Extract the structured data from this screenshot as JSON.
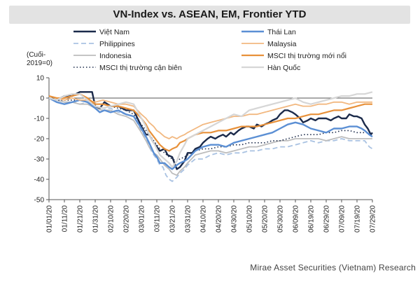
{
  "chart_data": {
    "type": "line",
    "title": "VN-Index vs. ASEAN, EM, Frontier YTD",
    "ylabel": "(Cuối-2019=0)",
    "ylabel_lines": [
      "(Cuối-",
      "2019=0)"
    ],
    "ylim": [
      -50,
      10
    ],
    "yticks": [
      10,
      0,
      -10,
      -20,
      -30,
      -40,
      -50
    ],
    "xlim": [
      0,
      210
    ],
    "x_tick_labels": [
      "01/01/20",
      "01/11/20",
      "01/21/20",
      "01/31/20",
      "02/10/20",
      "02/20/20",
      "03/01/20",
      "03/11/20",
      "03/21/20",
      "03/31/20",
      "04/10/20",
      "04/20/20",
      "04/30/20",
      "05/10/20",
      "05/20/20",
      "05/30/20",
      "06/09/20",
      "06/19/20",
      "06/29/20",
      "07/09/20",
      "07/19/20",
      "07/29/20"
    ],
    "x_tick_days": [
      0,
      10,
      20,
      30,
      40,
      50,
      60,
      70,
      80,
      90,
      100,
      110,
      120,
      130,
      140,
      150,
      160,
      170,
      180,
      190,
      200,
      210
    ],
    "series": [
      {
        "name": "Việt Nam",
        "color": "#1b2a4a",
        "width": 2.4,
        "dash": "",
        "x": [
          0,
          5,
          10,
          15,
          20,
          25,
          28,
          30,
          33,
          36,
          40,
          45,
          50,
          55,
          60,
          63,
          65,
          68,
          70,
          72,
          75,
          77,
          80,
          83,
          85,
          88,
          90,
          93,
          95,
          98,
          100,
          103,
          105,
          108,
          110,
          113,
          115,
          118,
          120,
          123,
          125,
          128,
          130,
          133,
          135,
          138,
          140,
          143,
          145,
          148,
          150,
          153,
          155,
          158,
          160,
          163,
          165,
          168,
          170,
          173,
          175,
          178,
          180,
          183,
          185,
          188,
          190,
          193,
          195,
          198,
          200,
          203,
          205,
          207,
          209,
          210
        ],
        "y": [
          0,
          -1,
          1,
          1,
          3,
          3,
          3,
          -4,
          -5,
          -2,
          -4,
          -4,
          -6,
          -6,
          -14,
          -18,
          -18,
          -22,
          -24,
          -26,
          -25,
          -28,
          -29,
          -35,
          -34,
          -31,
          -27,
          -27,
          -25,
          -24,
          -22,
          -20,
          -19,
          -20,
          -19,
          -18,
          -19,
          -17,
          -18,
          -16,
          -15,
          -14,
          -14,
          -15,
          -13,
          -14,
          -13,
          -12,
          -11,
          -10,
          -8,
          -6,
          -6,
          -7,
          -8,
          -10,
          -12,
          -11,
          -10,
          -11,
          -10,
          -10,
          -10,
          -11,
          -10,
          -9,
          -10,
          -10,
          -8,
          -9,
          -9,
          -10,
          -13,
          -15,
          -18,
          -17
        ]
      },
      {
        "name": "Philippines",
        "color": "#a9c2e2",
        "width": 1.8,
        "dash": "7,4",
        "x": [
          0,
          5,
          10,
          15,
          20,
          25,
          30,
          35,
          40,
          45,
          50,
          55,
          60,
          63,
          65,
          68,
          70,
          72,
          74,
          76,
          78,
          80,
          83,
          85,
          88,
          90,
          95,
          100,
          105,
          110,
          115,
          120,
          125,
          130,
          135,
          140,
          145,
          150,
          155,
          160,
          165,
          170,
          175,
          180,
          185,
          190,
          195,
          200,
          205,
          208,
          210
        ],
        "y": [
          0,
          -1,
          -2,
          -2,
          -3,
          -2,
          -4,
          -5,
          -5,
          -7,
          -8,
          -9,
          -16,
          -20,
          -24,
          -28,
          -30,
          -33,
          -34,
          -38,
          -40,
          -41,
          -39,
          -37,
          -35,
          -33,
          -30,
          -30,
          -28,
          -27,
          -28,
          -27,
          -27,
          -26,
          -26,
          -25,
          -25,
          -24,
          -24,
          -23,
          -22,
          -21,
          -22,
          -21,
          -21,
          -20,
          -21,
          -21,
          -21,
          -24,
          -25
        ]
      },
      {
        "name": "Indonesia",
        "color": "#bdbdbd",
        "width": 1.8,
        "dash": "",
        "x": [
          0,
          5,
          10,
          15,
          20,
          25,
          30,
          35,
          40,
          45,
          50,
          55,
          60,
          63,
          65,
          68,
          70,
          72,
          75,
          78,
          80,
          83,
          85,
          88,
          90,
          95,
          100,
          105,
          110,
          115,
          120,
          125,
          130,
          135,
          140,
          145,
          150,
          155,
          160,
          165,
          170,
          175,
          180,
          185,
          190,
          195,
          200,
          205,
          210
        ],
        "y": [
          0,
          -1,
          -2,
          -2,
          -3,
          -3,
          -5,
          -6,
          -6,
          -8,
          -9,
          -11,
          -17,
          -21,
          -24,
          -27,
          -28,
          -30,
          -33,
          -35,
          -37,
          -38,
          -36,
          -34,
          -32,
          -28,
          -27,
          -26,
          -26,
          -27,
          -26,
          -25,
          -24,
          -24,
          -23,
          -22,
          -21,
          -21,
          -20,
          -20,
          -20,
          -20,
          -21,
          -20,
          -19,
          -20,
          -20,
          -20,
          -20
        ]
      },
      {
        "name": "MSCI thị trường cận biên",
        "color": "#1b2a4a",
        "width": 1.6,
        "dash": "1.5,3",
        "x": [
          0,
          5,
          10,
          15,
          20,
          25,
          30,
          35,
          40,
          45,
          50,
          55,
          60,
          63,
          65,
          68,
          70,
          72,
          75,
          78,
          80,
          83,
          85,
          88,
          90,
          95,
          100,
          105,
          110,
          115,
          120,
          125,
          130,
          135,
          140,
          145,
          150,
          155,
          160,
          165,
          170,
          175,
          180,
          185,
          190,
          195,
          200,
          205,
          210
        ],
        "y": [
          0,
          -1,
          -1,
          -1,
          -1,
          -2,
          -3,
          -3,
          -4,
          -5,
          -6,
          -8,
          -13,
          -16,
          -18,
          -21,
          -23,
          -25,
          -27,
          -29,
          -30,
          -31,
          -30,
          -29,
          -28,
          -26,
          -25,
          -25,
          -24,
          -24,
          -23,
          -23,
          -22,
          -22,
          -22,
          -21,
          -21,
          -20,
          -19,
          -18,
          -18,
          -18,
          -17,
          -17,
          -16,
          -16,
          -17,
          -17,
          -17
        ]
      },
      {
        "name": "Thái Lan",
        "color": "#5b8fd4",
        "width": 2.4,
        "dash": "",
        "x": [
          0,
          5,
          10,
          15,
          20,
          25,
          30,
          33,
          36,
          40,
          45,
          50,
          55,
          60,
          63,
          65,
          68,
          70,
          72,
          75,
          78,
          80,
          83,
          85,
          88,
          90,
          95,
          100,
          105,
          110,
          115,
          120,
          125,
          130,
          135,
          140,
          145,
          150,
          155,
          160,
          165,
          170,
          175,
          180,
          185,
          190,
          195,
          200,
          203,
          205,
          208,
          210
        ],
        "y": [
          0,
          -2,
          -3,
          -2,
          -1,
          -2,
          -5,
          -7,
          -6,
          -7,
          -6,
          -8,
          -9,
          -15,
          -19,
          -22,
          -27,
          -29,
          -32,
          -32,
          -34,
          -35,
          -33,
          -32,
          -31,
          -30,
          -26,
          -24,
          -23,
          -23,
          -24,
          -22,
          -21,
          -20,
          -19,
          -18,
          -17,
          -15,
          -13,
          -12,
          -13,
          -15,
          -16,
          -17,
          -15,
          -15,
          -14,
          -14,
          -15,
          -16,
          -18,
          -19
        ]
      },
      {
        "name": "Malaysia",
        "color": "#f2b880",
        "width": 1.8,
        "dash": "",
        "x": [
          0,
          5,
          10,
          15,
          20,
          25,
          30,
          35,
          40,
          45,
          50,
          55,
          60,
          63,
          65,
          68,
          70,
          72,
          75,
          78,
          80,
          83,
          85,
          88,
          90,
          95,
          100,
          105,
          110,
          115,
          120,
          125,
          130,
          135,
          140,
          145,
          150,
          155,
          160,
          165,
          170,
          175,
          180,
          185,
          190,
          195,
          200,
          205,
          210
        ],
        "y": [
          1,
          0,
          -1,
          0,
          -1,
          -1,
          -2,
          -1,
          -2,
          -3,
          -3,
          -4,
          -8,
          -10,
          -12,
          -14,
          -16,
          -17,
          -19,
          -20,
          -19,
          -20,
          -19,
          -18,
          -17,
          -15,
          -13,
          -12,
          -11,
          -10,
          -9,
          -9,
          -8,
          -8,
          -7,
          -6,
          -5,
          -4,
          -3,
          -4,
          -4,
          -3,
          -3,
          -2,
          -2,
          -3,
          -2,
          -2,
          -2
        ]
      },
      {
        "name": "MSCI thị trường mới nổi",
        "color": "#e8913a",
        "width": 2.2,
        "dash": "",
        "x": [
          0,
          5,
          10,
          15,
          20,
          25,
          30,
          35,
          40,
          45,
          50,
          55,
          60,
          63,
          65,
          68,
          70,
          72,
          75,
          78,
          80,
          83,
          85,
          88,
          90,
          95,
          100,
          105,
          110,
          115,
          120,
          125,
          130,
          135,
          140,
          145,
          150,
          155,
          160,
          165,
          170,
          175,
          180,
          185,
          190,
          195,
          200,
          205,
          210
        ],
        "y": [
          1,
          0,
          0,
          1,
          2,
          0,
          -3,
          -3,
          -4,
          -4,
          -5,
          -6,
          -10,
          -13,
          -16,
          -19,
          -21,
          -23,
          -25,
          -26,
          -25,
          -24,
          -22,
          -21,
          -20,
          -18,
          -17,
          -17,
          -16,
          -16,
          -15,
          -14,
          -14,
          -14,
          -13,
          -12,
          -11,
          -10,
          -10,
          -9,
          -8,
          -8,
          -7,
          -6,
          -6,
          -5,
          -4,
          -3,
          -3
        ]
      },
      {
        "name": "Hàn Quốc",
        "color": "#d6d6d6",
        "width": 2.2,
        "dash": "",
        "x": [
          0,
          5,
          10,
          15,
          20,
          25,
          30,
          35,
          40,
          45,
          50,
          55,
          60,
          63,
          65,
          68,
          70,
          72,
          75,
          78,
          80,
          83,
          85,
          88,
          90,
          95,
          100,
          105,
          110,
          115,
          120,
          125,
          130,
          135,
          140,
          145,
          150,
          155,
          160,
          165,
          170,
          175,
          180,
          185,
          190,
          195,
          200,
          205,
          210
        ],
        "y": [
          0,
          -1,
          1,
          2,
          2,
          -1,
          -4,
          -5,
          -4,
          -3,
          -2,
          -3,
          -10,
          -14,
          -18,
          -22,
          -25,
          -28,
          -30,
          -32,
          -34,
          -31,
          -27,
          -23,
          -20,
          -18,
          -16,
          -14,
          -12,
          -10,
          -8,
          -9,
          -6,
          -5,
          -4,
          -3,
          -2,
          -1,
          0,
          -2,
          -3,
          -2,
          -1,
          0,
          1,
          1,
          2,
          2,
          3
        ]
      }
    ]
  },
  "legend": {
    "rows": [
      [
        "Việt Nam",
        "Thái Lan"
      ],
      [
        "Philippines",
        "Malaysia"
      ],
      [
        "Indonesia",
        "MSCI thị trường mới nổi"
      ],
      [
        "MSCI thị trường cận biên",
        "Hàn Quốc"
      ]
    ]
  },
  "source": "Mirae Asset Securities (Vietnam) Research"
}
